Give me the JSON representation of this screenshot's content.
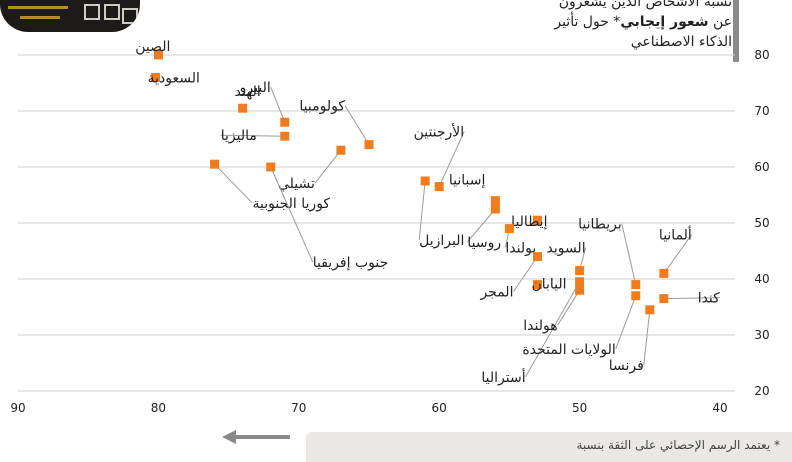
{
  "header": {
    "title_line1": "نسبة الأشخاص الذين يشعرون",
    "title_line2_pre": "عن",
    "title_line2_bold": "شعور إيجابي",
    "title_line2_post": "* حول تأثير",
    "title_line3": "الذكاء الاصطناعي"
  },
  "footer": {
    "note": "* يعتمد الرسم الإحصائي على الثقة بنسبة",
    "arrow_icon": "left-arrow-icon"
  },
  "colors": {
    "marker": "#f07c1e",
    "leader": "#9a9a9a",
    "grid": "#cfcfcf",
    "axis_arrow": "#8a8a8a"
  },
  "chart_data": {
    "type": "scatter",
    "xlim": [
      90,
      35
    ],
    "ylim": [
      20,
      82
    ],
    "xticks": [
      90,
      80,
      70,
      60,
      50,
      40
    ],
    "yticks": [
      80,
      70,
      60,
      50,
      40,
      30,
      20
    ],
    "grid": "horizontal",
    "points": [
      {
        "label": "الصين",
        "x": 80.0,
        "y": 80.0
      },
      {
        "label": "السعودية",
        "x": 80.2,
        "y": 76.0
      },
      {
        "label": "الهند",
        "x": 74.0,
        "y": 70.5
      },
      {
        "label": "البيرو",
        "x": 71.0,
        "y": 68.0
      },
      {
        "label": "ماليزيا",
        "x": 71.0,
        "y": 65.5
      },
      {
        "label": "كولومبيا",
        "x": 65.0,
        "y": 64.0
      },
      {
        "label": "تشيلي",
        "x": 67.0,
        "y": 63.0
      },
      {
        "label": "كوريا الجنوبية",
        "x": 76.0,
        "y": 60.5
      },
      {
        "label": "جنوب إفريقيا",
        "x": 72.0,
        "y": 60.0
      },
      {
        "label": "البرازيل",
        "x": 61.0,
        "y": 57.5
      },
      {
        "label": "الأرجنتين",
        "x": 60.0,
        "y": 56.5
      },
      {
        "label": "إسبانيا",
        "x": 56.0,
        "y": 54.0
      },
      {
        "label": "روسيا",
        "x": 56.0,
        "y": 52.5
      },
      {
        "label": "إيطاليا",
        "x": 53.0,
        "y": 50.5
      },
      {
        "label": "بولندا",
        "x": 55.0,
        "y": 49.0
      },
      {
        "label": "المجر",
        "x": 53.0,
        "y": 44.0
      },
      {
        "label": "السويد",
        "x": 50.0,
        "y": 41.5
      },
      {
        "label": "ألمانيا",
        "x": 44.0,
        "y": 41.0
      },
      {
        "label": "بريطانيا",
        "x": 46.0,
        "y": 39.0
      },
      {
        "label": "اليابان",
        "x": 53.0,
        "y": 39.0
      },
      {
        "label": "أستراليا",
        "x": 50.0,
        "y": 39.5
      },
      {
        "label": "الولايات المتحدة",
        "x": 46.0,
        "y": 37.0
      },
      {
        "label": "كندا",
        "x": 44.0,
        "y": 36.5
      },
      {
        "label": "هولندا",
        "x": 50.0,
        "y": 38.0
      },
      {
        "label": "فرنسا",
        "x": 45.0,
        "y": 34.5
      }
    ]
  }
}
